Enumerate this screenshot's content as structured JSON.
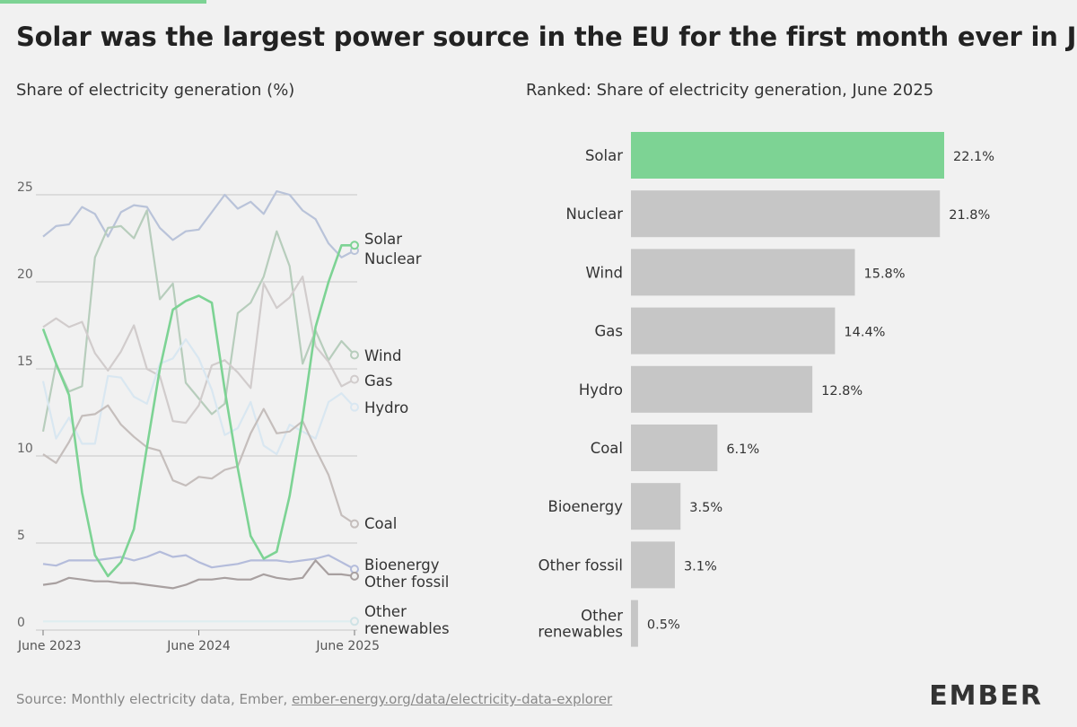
{
  "title": "Solar was the largest power source in the EU for the first month ever in June",
  "source": {
    "prefix": "Source: Monthly electricity data, Ember, ",
    "link": "ember-energy.org/data/electricity-data-explorer"
  },
  "logo": "EMBER",
  "colors": {
    "solar": "#7dd394",
    "bar_grey": "#c6c6c6",
    "accent": "#7dd394"
  },
  "chart_data": [
    {
      "type": "line",
      "title": "Share of electricity generation (%)",
      "x_tick_labels": [
        "June 2023",
        "June 2024",
        "June 2025"
      ],
      "y_ticks": [
        0,
        5,
        10,
        15,
        20,
        25
      ],
      "ylim": [
        0,
        25
      ],
      "grid": true,
      "x": [
        "2023-06",
        "2023-07",
        "2023-08",
        "2023-09",
        "2023-10",
        "2023-11",
        "2023-12",
        "2024-01",
        "2024-02",
        "2024-03",
        "2024-04",
        "2024-05",
        "2024-06",
        "2024-07",
        "2024-08",
        "2024-09",
        "2024-10",
        "2024-11",
        "2024-12",
        "2025-01",
        "2025-02",
        "2025-03",
        "2025-04",
        "2025-05",
        "2025-06"
      ],
      "series": [
        {
          "name": "Solar",
          "label": "Solar",
          "color": "#7dd394",
          "values": [
            17.3,
            15.3,
            13.5,
            7.9,
            4.3,
            3.1,
            3.9,
            5.8,
            10.5,
            15.0,
            18.4,
            18.9,
            19.2,
            18.8,
            13.8,
            9.3,
            5.4,
            4.1,
            4.5,
            7.7,
            12.2,
            17.4,
            20.0,
            22.1,
            22.1
          ]
        },
        {
          "name": "Nuclear",
          "label": "Nuclear",
          "color": "#b9c3d9",
          "values": [
            22.6,
            23.2,
            23.3,
            24.3,
            23.9,
            22.6,
            24.0,
            24.4,
            24.3,
            23.1,
            22.4,
            22.9,
            23.0,
            24.0,
            25.0,
            24.2,
            24.6,
            23.9,
            25.2,
            25.0,
            24.1,
            23.6,
            22.2,
            21.4,
            21.8
          ]
        },
        {
          "name": "Wind",
          "label": "Wind",
          "color": "#b7cdbc",
          "values": [
            11.4,
            15.3,
            13.7,
            14.0,
            21.4,
            23.1,
            23.2,
            22.5,
            24.1,
            19.0,
            19.9,
            14.2,
            13.3,
            12.4,
            13.0,
            18.2,
            18.8,
            20.3,
            22.9,
            20.9,
            15.3,
            17.2,
            15.5,
            16.6,
            15.8
          ]
        },
        {
          "name": "Gas",
          "label": "Gas",
          "color": "#d1cccc",
          "values": [
            17.4,
            17.9,
            17.4,
            17.7,
            15.9,
            14.9,
            16.0,
            17.5,
            15.0,
            14.6,
            12.0,
            11.9,
            12.9,
            15.2,
            15.5,
            14.8,
            13.9,
            19.9,
            18.5,
            19.1,
            20.3,
            16.3,
            15.4,
            14.0,
            14.4
          ]
        },
        {
          "name": "Hydro",
          "label": "Hydro",
          "color": "#d9e7f1",
          "values": [
            14.3,
            11.0,
            12.2,
            10.7,
            10.7,
            14.6,
            14.5,
            13.4,
            13.0,
            15.3,
            15.6,
            16.7,
            15.6,
            13.8,
            11.2,
            11.6,
            13.1,
            10.6,
            10.1,
            11.8,
            11.4,
            11.0,
            13.1,
            13.6,
            12.8
          ]
        },
        {
          "name": "Coal",
          "label": "Coal",
          "color": "#c5bebc",
          "values": [
            10.1,
            9.6,
            10.8,
            12.3,
            12.4,
            12.9,
            11.8,
            11.1,
            10.5,
            10.3,
            8.6,
            8.3,
            8.8,
            8.7,
            9.2,
            9.4,
            11.3,
            12.7,
            11.3,
            11.4,
            12.0,
            10.4,
            8.9,
            6.6,
            6.1
          ]
        },
        {
          "name": "Bioenergy",
          "label": "Bioenergy",
          "color": "#b4bcdb",
          "values": [
            3.8,
            3.7,
            4.0,
            4.0,
            4.0,
            4.1,
            4.2,
            4.0,
            4.2,
            4.5,
            4.2,
            4.3,
            3.9,
            3.6,
            3.7,
            3.8,
            4.0,
            4.0,
            4.0,
            3.9,
            4.0,
            4.1,
            4.3,
            3.9,
            3.5
          ]
        },
        {
          "name": "Other fossil",
          "label": "Other fossil",
          "color": "#a8a0a0",
          "values": [
            2.6,
            2.7,
            3.0,
            2.9,
            2.8,
            2.8,
            2.7,
            2.7,
            2.6,
            2.5,
            2.4,
            2.6,
            2.9,
            2.9,
            3.0,
            2.9,
            2.9,
            3.2,
            3.0,
            2.9,
            3.0,
            4.0,
            3.2,
            3.2,
            3.1
          ]
        },
        {
          "name": "Other renewables",
          "label": "Other renewables",
          "label_lines": [
            "Other",
            "renewables"
          ],
          "color": "#dfeef0",
          "values": [
            0.5,
            0.5,
            0.5,
            0.5,
            0.5,
            0.5,
            0.5,
            0.5,
            0.5,
            0.5,
            0.5,
            0.5,
            0.5,
            0.5,
            0.5,
            0.5,
            0.5,
            0.5,
            0.5,
            0.5,
            0.5,
            0.5,
            0.5,
            0.5,
            0.5
          ]
        }
      ]
    },
    {
      "type": "bar",
      "title": "Ranked: Share of electricity generation, June 2025",
      "orientation": "horizontal",
      "categories": [
        "Solar",
        "Nuclear",
        "Wind",
        "Gas",
        "Hydro",
        "Coal",
        "Bioenergy",
        "Other fossil",
        "Other renewables"
      ],
      "category_label_lines": [
        [
          "Solar"
        ],
        [
          "Nuclear"
        ],
        [
          "Wind"
        ],
        [
          "Gas"
        ],
        [
          "Hydro"
        ],
        [
          "Coal"
        ],
        [
          "Bioenergy"
        ],
        [
          "Other fossil"
        ],
        [
          "Other",
          "renewables"
        ]
      ],
      "values": [
        22.1,
        21.8,
        15.8,
        14.4,
        12.8,
        6.1,
        3.5,
        3.1,
        0.5
      ],
      "value_labels": [
        "22.1%",
        "21.8%",
        "15.8%",
        "14.4%",
        "12.8%",
        "6.1%",
        "3.5%",
        "3.1%",
        "0.5%"
      ],
      "highlight": "Solar",
      "bar_colors": [
        "#7dd394",
        "#c6c6c6",
        "#c6c6c6",
        "#c6c6c6",
        "#c6c6c6",
        "#c6c6c6",
        "#c6c6c6",
        "#c6c6c6",
        "#c6c6c6"
      ]
    }
  ]
}
